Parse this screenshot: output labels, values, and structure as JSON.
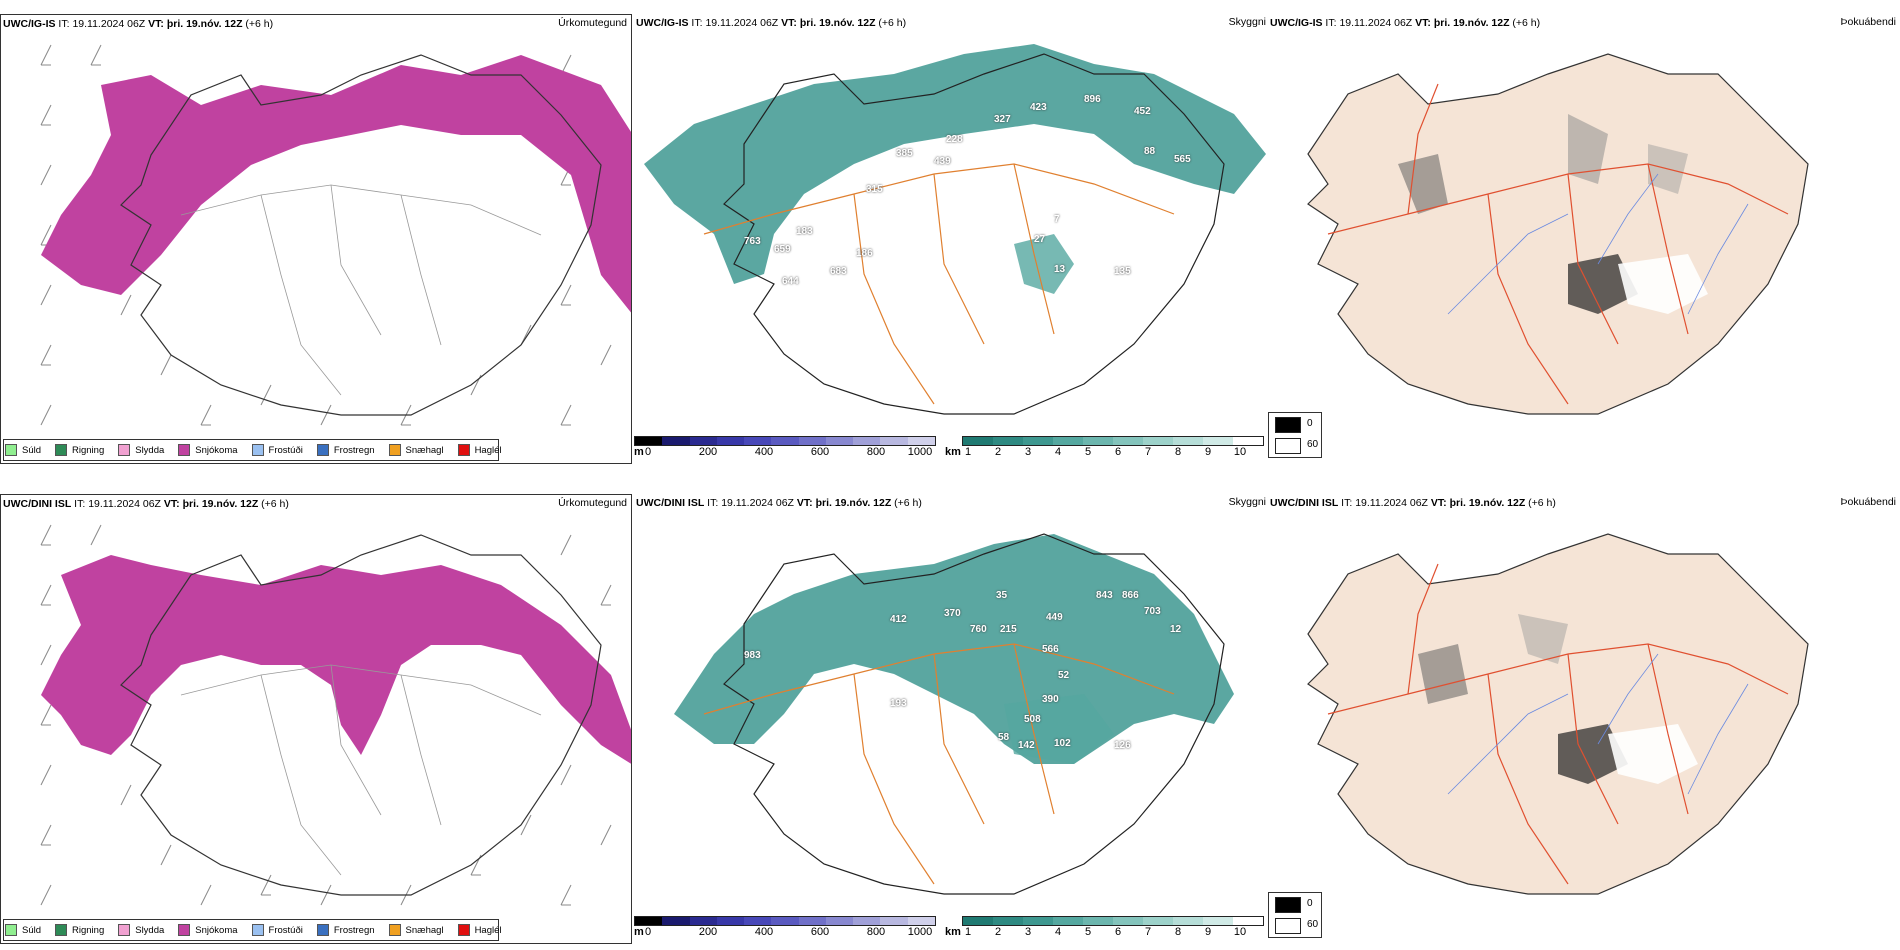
{
  "rows": [
    {
      "model": "UWC/IG-IS",
      "it_label": "IT:",
      "it_value": "19.11.2024 06Z",
      "vt_label": "VT:",
      "vt_value": "þri. 19.nóv. 12Z",
      "offset": "(+6 h)",
      "titles": [
        "Úrkomutegund",
        "Skyggni",
        "Þokuábendi"
      ],
      "cloud_labels": [
        "896",
        "452",
        "327",
        "423",
        "228",
        "385",
        "439",
        "88",
        "565",
        "315",
        "183",
        "763",
        "659",
        "186",
        "683",
        "644",
        "7",
        "27",
        "13",
        "135"
      ]
    },
    {
      "model": "UWC/DINI ISL",
      "it_label": "IT:",
      "it_value": "19.11.2024 06Z",
      "vt_label": "VT:",
      "vt_value": "þri. 19.nóv. 12Z",
      "offset": "(+6 h)",
      "titles": [
        "Úrkomutegund",
        "Skyggni",
        "Þokuábendi"
      ],
      "cloud_labels": [
        "35",
        "843",
        "866",
        "703",
        "412",
        "370",
        "760",
        "215",
        "449",
        "566",
        "52",
        "983",
        "193",
        "390",
        "508",
        "58",
        "142",
        "102",
        "126",
        "12"
      ]
    }
  ],
  "precip_legend": [
    {
      "label": "Súld",
      "color": "#90ee90"
    },
    {
      "label": "Rigning",
      "color": "#2e8b57"
    },
    {
      "label": "Slydda",
      "color": "#f0a0d0"
    },
    {
      "label": "Snjókoma",
      "color": "#c042a0"
    },
    {
      "label": "Frostúði",
      "color": "#9ac0f0"
    },
    {
      "label": "Frostregn",
      "color": "#3a70c0"
    },
    {
      "label": "Snæhagl",
      "color": "#f0a020"
    },
    {
      "label": "Haglél",
      "color": "#e01010"
    }
  ],
  "cloud_base_scale": {
    "unit": "m",
    "ticks": [
      "0",
      "200",
      "400",
      "600",
      "800",
      "1000"
    ],
    "colors": [
      "#000000",
      "#1a1a6e",
      "#2a2a90",
      "#3838a8",
      "#4848b8",
      "#5a5ac0",
      "#7070c8",
      "#8888d0",
      "#a0a0d8",
      "#b8b8e0",
      "#d0d0ea"
    ]
  },
  "visibility_scale": {
    "unit": "km",
    "ticks": [
      "1",
      "2",
      "3",
      "4",
      "5",
      "6",
      "7",
      "8",
      "9",
      "10"
    ],
    "colors": [
      "#1f7a72",
      "#2e8a82",
      "#3e9890",
      "#55a8a0",
      "#6cb6ae",
      "#84c4bc",
      "#9dd2ca",
      "#b6ded8",
      "#d0eae6",
      "#ffffff"
    ]
  },
  "fog_scale": {
    "labels": [
      "0",
      "60"
    ],
    "colors": [
      "#000000",
      "#ffffff"
    ]
  }
}
